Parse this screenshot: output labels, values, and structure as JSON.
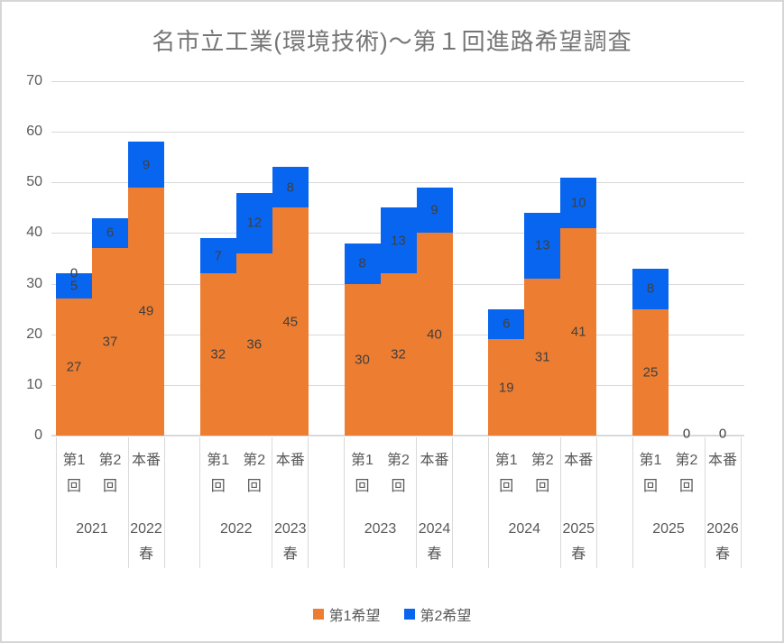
{
  "chart_data": {
    "type": "bar",
    "stacked": true,
    "title": "名市立工業(環境技術)～第１回進路希望調査",
    "ylim": [
      0,
      70
    ],
    "yticks": [
      0,
      10,
      20,
      30,
      40,
      50,
      60,
      70
    ],
    "grid": true,
    "legend_position": "bottom",
    "series": [
      {
        "name": "第1希望",
        "color": "#ED7D31"
      },
      {
        "name": "第2希望",
        "color": "#0865F0"
      }
    ],
    "label_color": "#3F3F3F",
    "groups": [
      {
        "year": "2021",
        "spring": "2022春",
        "bars": [
          {
            "cat": "第1回",
            "first": 27,
            "second": 5,
            "extra_label": "0"
          },
          {
            "cat": "第2回",
            "first": 37,
            "second": 6
          },
          {
            "cat": "本番",
            "first": 49,
            "second": 9
          }
        ]
      },
      {
        "year": "2022",
        "spring": "2023春",
        "bars": [
          {
            "cat": "第1回",
            "first": 32,
            "second": 7
          },
          {
            "cat": "第2回",
            "first": 36,
            "second": 12
          },
          {
            "cat": "本番",
            "first": 45,
            "second": 8
          }
        ]
      },
      {
        "year": "2023",
        "spring": "2024春",
        "bars": [
          {
            "cat": "第1回",
            "first": 30,
            "second": 8
          },
          {
            "cat": "第2回",
            "first": 32,
            "second": 13
          },
          {
            "cat": "本番",
            "first": 40,
            "second": 9
          }
        ]
      },
      {
        "year": "2024",
        "spring": "2025春",
        "bars": [
          {
            "cat": "第1回",
            "first": 19,
            "second": 6
          },
          {
            "cat": "第2回",
            "first": 31,
            "second": 13
          },
          {
            "cat": "本番",
            "first": 41,
            "second": 10
          }
        ]
      },
      {
        "year": "2025",
        "spring": "2026春",
        "bars": [
          {
            "cat": "第1回",
            "first": 25,
            "second": 8
          },
          {
            "cat": "第2回",
            "first": 0,
            "second": 0,
            "zero_label": "0"
          },
          {
            "cat": "本番",
            "first": 0,
            "second": 0,
            "zero_label": "0"
          }
        ]
      }
    ]
  }
}
